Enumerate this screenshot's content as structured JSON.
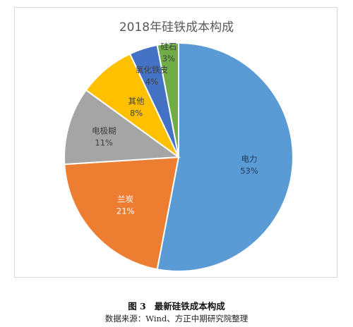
{
  "chart_data": {
    "type": "pie",
    "title": "2018年硅铁成本构成",
    "slices": [
      {
        "label": "电力",
        "value": 53,
        "value_label": "53%",
        "color": "#5b9bd5"
      },
      {
        "label": "兰炭",
        "value": 21,
        "value_label": "21%",
        "color": "#ed7d31"
      },
      {
        "label": "电极糊",
        "value": 11,
        "value_label": "11%",
        "color": "#a5a5a5"
      },
      {
        "label": "其他",
        "value": 8,
        "value_label": "8%",
        "color": "#ffc000"
      },
      {
        "label": "氧化铁皮",
        "value": 4,
        "value_label": "4%",
        "color": "#4472c4"
      },
      {
        "label": "硅石",
        "value": 3,
        "value_label": "3%",
        "color": "#70ad47"
      }
    ],
    "legend": "none"
  },
  "caption": {
    "figure_no": "图 3",
    "title": "最新硅铁成本构成",
    "source": "数据来源：Wind、方正中期研究院整理"
  }
}
